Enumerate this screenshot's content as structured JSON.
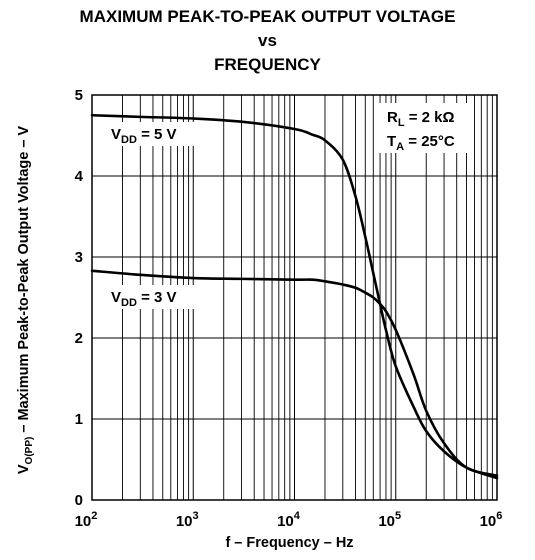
{
  "title_lines": [
    "MAXIMUM PEAK-TO-PEAK OUTPUT VOLTAGE",
    "vs",
    "FREQUENCY"
  ],
  "chart_data": {
    "type": "line",
    "title": "MAXIMUM PEAK-TO-PEAK OUTPUT VOLTAGE vs FREQUENCY",
    "xlabel": "f – Frequency – Hz",
    "ylabel": {
      "prefix": "V",
      "sub": "O(PP)",
      "rest": " – Maximum Peak-to-Peak Output Voltage – V"
    },
    "x_scale": "log",
    "xlim": [
      100,
      1000000
    ],
    "ylim": [
      0,
      5
    ],
    "grid": true,
    "x_ticks": [
      {
        "base": "10",
        "exp": "2"
      },
      {
        "base": "10",
        "exp": "3"
      },
      {
        "base": "10",
        "exp": "4"
      },
      {
        "base": "10",
        "exp": "5"
      },
      {
        "base": "10",
        "exp": "6"
      }
    ],
    "y_ticks": [
      "0",
      "1",
      "2",
      "3",
      "4",
      "5"
    ],
    "annotations": [
      {
        "main": "R",
        "sub": "L",
        "rest": " = 2 kΩ"
      },
      {
        "main": "T",
        "sub": "A",
        "rest": " = 25°C"
      }
    ],
    "series": [
      {
        "label": {
          "main": "V",
          "sub": "DD",
          "rest": " = 5 V"
        },
        "x": [
          100,
          300,
          1000,
          3000,
          10000,
          15000,
          20000,
          30000,
          40000,
          50000,
          60000,
          70000,
          80000,
          100000,
          150000,
          200000,
          300000,
          500000,
          1000000
        ],
        "y": [
          4.75,
          4.73,
          4.71,
          4.67,
          4.58,
          4.51,
          4.44,
          4.2,
          3.75,
          3.25,
          2.8,
          2.42,
          2.1,
          1.65,
          1.15,
          0.85,
          0.6,
          0.4,
          0.27
        ]
      },
      {
        "label": {
          "main": "V",
          "sub": "DD",
          "rest": " = 3 V"
        },
        "x": [
          100,
          300,
          1000,
          3000,
          10000,
          15000,
          20000,
          30000,
          40000,
          50000,
          60000,
          70000,
          80000,
          100000,
          150000,
          200000,
          300000,
          500000,
          1000000
        ],
        "y": [
          2.83,
          2.78,
          2.74,
          2.73,
          2.72,
          2.72,
          2.7,
          2.66,
          2.62,
          2.56,
          2.5,
          2.42,
          2.33,
          2.1,
          1.55,
          1.1,
          0.7,
          0.4,
          0.3
        ]
      }
    ]
  }
}
